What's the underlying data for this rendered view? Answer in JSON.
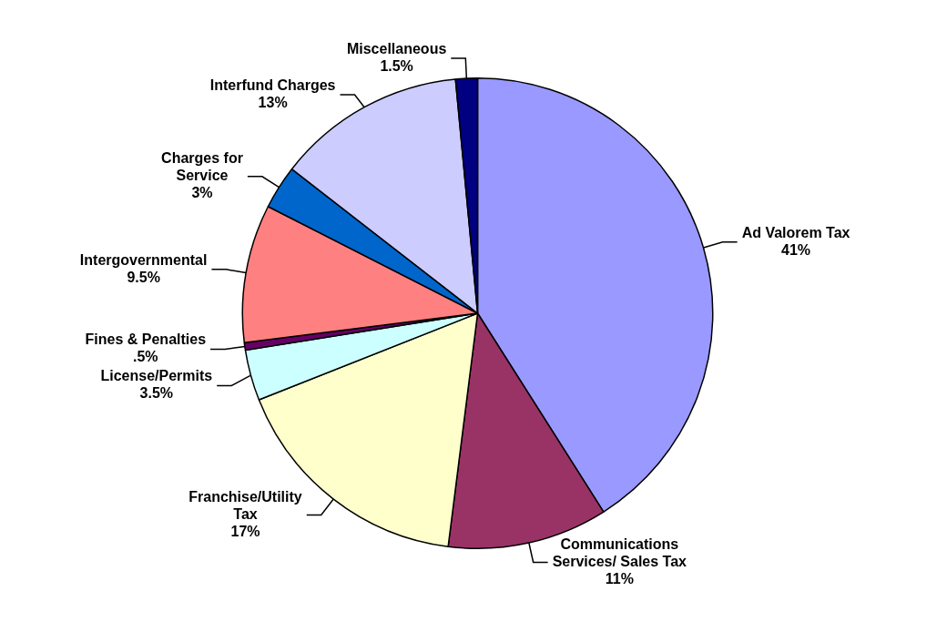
{
  "chart_data": {
    "type": "pie",
    "categories": [
      "Ad Valorem Tax",
      "Communications Services/ Sales Tax",
      "Franchise/Utility Tax",
      "License/Permits",
      "Fines & Penalties",
      "Intergovernmental",
      "Charges for Service",
      "Interfund Charges",
      "Miscellaneous"
    ],
    "values": [
      41,
      11,
      17,
      3.5,
      0.5,
      9.5,
      3,
      13,
      1.5
    ],
    "value_labels": [
      "41%",
      "11%",
      "17%",
      "3.5%",
      ".5%",
      "9.5%",
      "3%",
      "13%",
      "1.5%"
    ],
    "colors": [
      "#9999ff",
      "#993366",
      "#ffffcc",
      "#ccffff",
      "#660066",
      "#ff8080",
      "#0066cc",
      "#ccccff",
      "#000080"
    ]
  }
}
